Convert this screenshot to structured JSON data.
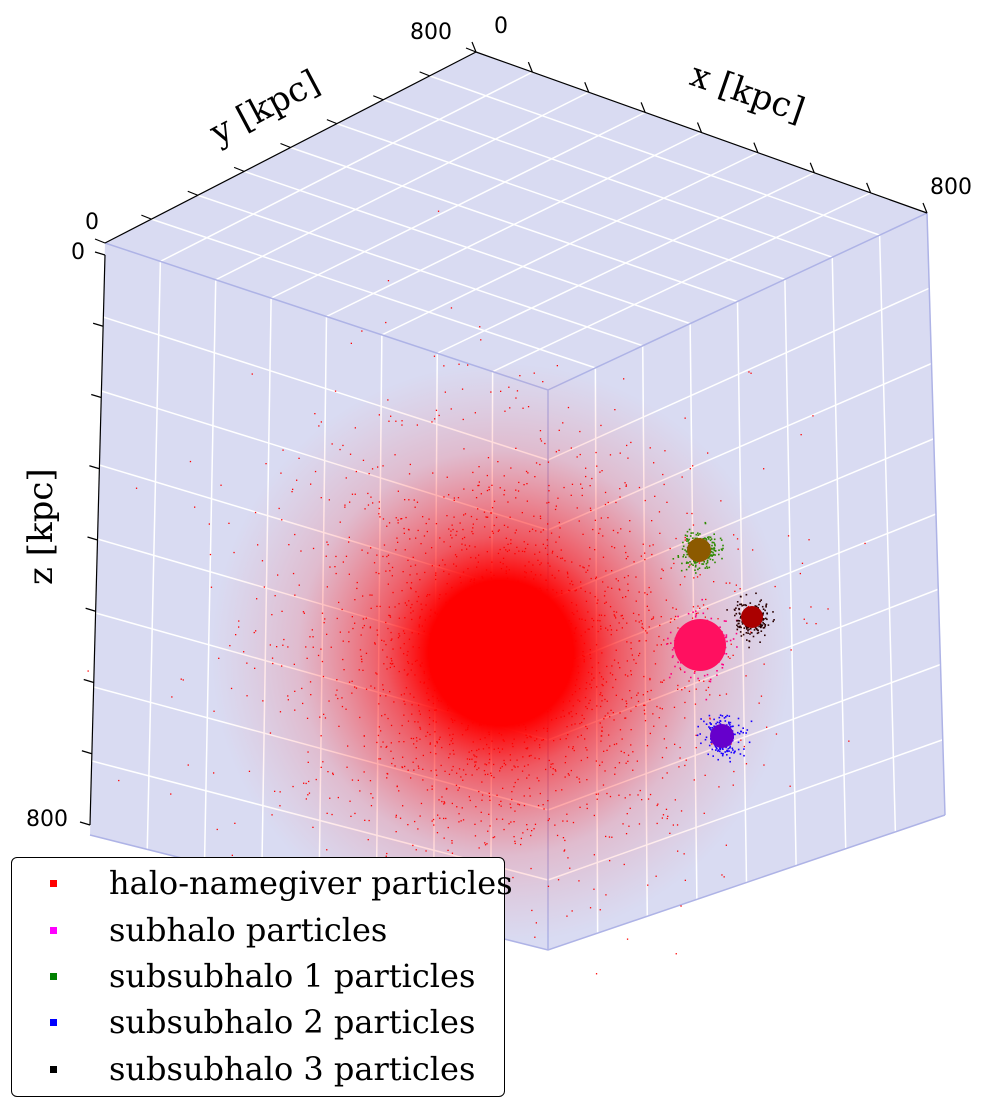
{
  "chart_data": {
    "type": "scatter",
    "projection": "3d",
    "axes": {
      "x": {
        "label": "x [kpc]",
        "range": [
          0,
          800
        ],
        "tick_labels": [
          "0",
          "800"
        ]
      },
      "y": {
        "label": "y [kpc]",
        "range": [
          0,
          800
        ],
        "tick_labels": [
          "0",
          "800"
        ]
      },
      "z": {
        "label": "z [kpc]",
        "range": [
          0,
          800
        ],
        "tick_labels": [
          "0",
          "800"
        ]
      }
    },
    "grid": true,
    "pane_color": "#d9dbf2",
    "legend_position": "bottom-left",
    "series": [
      {
        "name": "halo-namegiver particles",
        "color": "#ff0000",
        "center": [
          400,
          400,
          400
        ],
        "core_radius": 70,
        "halo_radius": 300
      },
      {
        "name": "subhalo particles",
        "color": "#ff00ff",
        "center": [
          640,
          300,
          560
        ],
        "core_radius": 30,
        "halo_radius": 40
      },
      {
        "name": "subsubhalo 1 particles",
        "color": "#008000",
        "center": [
          660,
          250,
          425
        ],
        "core_radius": 15,
        "halo_radius": 25
      },
      {
        "name": "subsubhalo 2 particles",
        "color": "#0000ff",
        "center": [
          680,
          260,
          680
        ],
        "core_radius": 15,
        "halo_radius": 25
      },
      {
        "name": "subsubhalo 3 particles",
        "color": "#000000",
        "center": [
          690,
          330,
          520
        ],
        "core_radius": 15,
        "halo_radius": 25
      }
    ]
  }
}
